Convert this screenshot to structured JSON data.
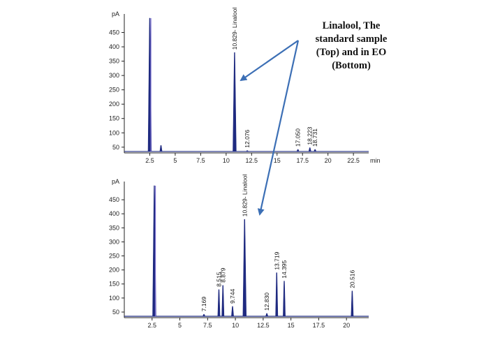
{
  "annotation": {
    "lines": [
      "Linalool, The",
      "standard sample",
      "(Top) and in EO",
      "(Bottom)"
    ]
  },
  "colors": {
    "trace": "#1f2a80",
    "trace_highlight": "#7b6fd0",
    "arrow": "#3c6fb5",
    "axis": "#222222"
  },
  "chart_data": [
    {
      "type": "line",
      "title": "",
      "xlabel": "min",
      "ylabel": "pA",
      "xlim": [
        0,
        24.0
      ],
      "ylim": [
        30,
        500
      ],
      "xticks": [
        "2.5",
        "5",
        "7.5",
        "10",
        "12.5",
        "15",
        "17.5",
        "20",
        "22.5"
      ],
      "yticks": [
        "50",
        "100",
        "150",
        "200",
        "250",
        "300",
        "350",
        "400",
        "450"
      ],
      "baseline": 35,
      "peaks": [
        {
          "rt": 2.5,
          "height": 500,
          "label": ""
        },
        {
          "rt": 3.6,
          "height": 56,
          "label": ""
        },
        {
          "rt": 10.829,
          "height": 380,
          "label": "10.829- Linalool"
        },
        {
          "rt": 12.076,
          "height": 38,
          "label": "12.076"
        },
        {
          "rt": 17.05,
          "height": 42,
          "label": "17.050"
        },
        {
          "rt": 18.223,
          "height": 48,
          "label": "18.223"
        },
        {
          "rt": 18.731,
          "height": 42,
          "label": "18.731"
        }
      ]
    },
    {
      "type": "line",
      "title": "",
      "xlabel": "",
      "ylabel": "pA",
      "xlim": [
        0,
        22.0
      ],
      "ylim": [
        30,
        500
      ],
      "xticks": [
        "2.5",
        "5",
        "7.5",
        "10",
        "12.5",
        "15",
        "17.5",
        "20"
      ],
      "yticks": [
        "50",
        "100",
        "150",
        "200",
        "250",
        "300",
        "350",
        "400",
        "450"
      ],
      "baseline": 35,
      "peaks": [
        {
          "rt": 2.7,
          "height": 500,
          "label": ""
        },
        {
          "rt": 7.169,
          "height": 42,
          "label": "7.169"
        },
        {
          "rt": 8.515,
          "height": 130,
          "label": "8.515"
        },
        {
          "rt": 8.879,
          "height": 145,
          "label": "8.879"
        },
        {
          "rt": 9.744,
          "height": 70,
          "label": "9.744"
        },
        {
          "rt": 10.829,
          "height": 380,
          "label": "10.829- Linalool"
        },
        {
          "rt": 12.83,
          "height": 45,
          "label": "12.830"
        },
        {
          "rt": 13.719,
          "height": 190,
          "label": "13.719"
        },
        {
          "rt": 14.395,
          "height": 160,
          "label": "14.395"
        },
        {
          "rt": 20.516,
          "height": 125,
          "label": "20.516"
        }
      ]
    }
  ]
}
